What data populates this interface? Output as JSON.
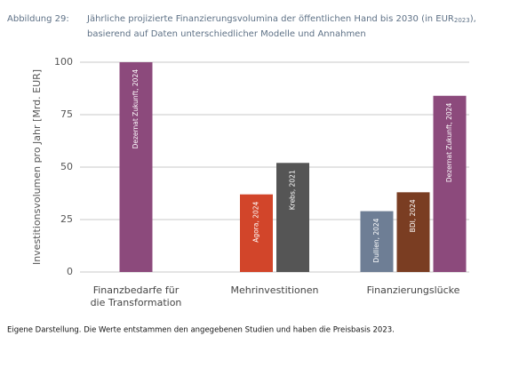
{
  "chart_data": {
    "type": "grouped-bar",
    "figure_label": "Abbildung 29:",
    "title": "Jährliche projizierte Finanzierungsvolumina der öffentlichen Hand bis 2030 (in EUR",
    "title_sub": "2023",
    "title_end": "),",
    "subtitle": "basierend auf Daten unterschiedlicher Modelle und Annahmen",
    "ylabel": "Investitionsvolumen pro Jahr [Mrd. EUR]",
    "ylim": [
      0,
      100
    ],
    "yticks": [
      0,
      25,
      50,
      75,
      100
    ],
    "grid": true,
    "groups": [
      {
        "name": [
          "Finanzbedarfe für",
          "die Transformation"
        ],
        "bars": [
          {
            "label": "Dezernat Zukunft, 2024",
            "value": 100,
            "color": "#8c4a7c"
          }
        ]
      },
      {
        "name": [
          "Mehrinvestitionen"
        ],
        "bars": [
          {
            "label": "Agora, 2024",
            "value": 37,
            "color": "#d2452a"
          },
          {
            "label": "Krebs, 2021",
            "value": 52,
            "color": "#555555"
          }
        ]
      },
      {
        "name": [
          "Finanzierungslücke"
        ],
        "bars": [
          {
            "label": "Dullien, 2024",
            "value": 29,
            "color": "#6e7e95"
          },
          {
            "label": "BDI, 2024",
            "value": 38,
            "color": "#7a3d22"
          },
          {
            "label": "Dezernat Zukunft, 2024",
            "value": 84,
            "color": "#8c4a7c"
          }
        ]
      }
    ],
    "source": "Eigene Darstellung. Die Werte entstammen den angegebenen Studien und haben die Preisbasis 2023."
  }
}
